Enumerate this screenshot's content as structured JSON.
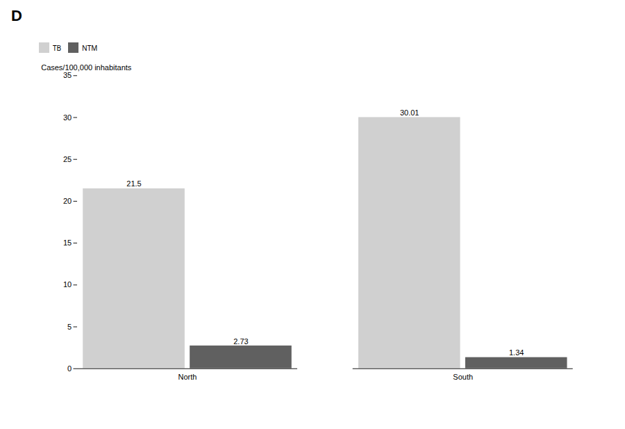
{
  "chart_data": {
    "type": "bar",
    "title": "D",
    "categories": [
      "North",
      "South"
    ],
    "series": [
      {
        "name": "TB",
        "color": "#d0d0d0",
        "values": [
          21.5,
          30.01
        ]
      },
      {
        "name": "NTM",
        "color": "#606060",
        "values": [
          2.73,
          1.34
        ]
      }
    ],
    "ylabel": "Cases/100,000 inhabitants",
    "ylim": [
      0,
      35
    ],
    "yticks": [
      0,
      5,
      10,
      15,
      20,
      25,
      30,
      35
    ],
    "data_labels": true,
    "legend": "upper left",
    "grid": false
  }
}
